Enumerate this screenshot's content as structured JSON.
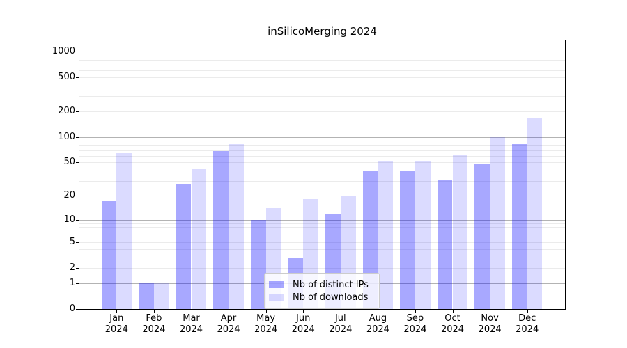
{
  "title": "inSilicoMerging 2024",
  "chart_data": {
    "type": "bar",
    "title": "inSilicoMerging 2024",
    "x_categories_line1": [
      "Jan",
      "Feb",
      "Mar",
      "Apr",
      "May",
      "Jun",
      "Jul",
      "Aug",
      "Sep",
      "Oct",
      "Nov",
      "Dec"
    ],
    "x_categories_line2": [
      "2024",
      "2024",
      "2024",
      "2024",
      "2024",
      "2024",
      "2024",
      "2024",
      "2024",
      "2024",
      "2024",
      "2024"
    ],
    "series": [
      {
        "name": "Nb of distinct IPs",
        "color": "rgba(0,0,255,0.34)",
        "values": [
          17,
          1,
          28,
          68,
          10,
          3,
          12,
          40,
          40,
          31,
          48,
          82
        ]
      },
      {
        "name": "Nb of downloads",
        "color": "rgba(0,0,255,0.14)",
        "values": [
          65,
          1,
          42,
          82,
          14,
          18,
          20,
          52,
          52,
          61,
          100,
          170
        ]
      }
    ],
    "y_scale": "log1p",
    "y_ticks": [
      0,
      1,
      2,
      5,
      10,
      20,
      50,
      100,
      200,
      500,
      1000
    ],
    "y_major_grid": [
      1,
      10,
      100,
      1000
    ],
    "y_minor_grid": [
      2,
      3,
      4,
      5,
      6,
      7,
      8,
      9,
      20,
      30,
      40,
      50,
      60,
      70,
      80,
      90,
      200,
      300,
      400,
      500,
      600,
      700,
      800,
      900
    ],
    "ylim": [
      0,
      1000
    ],
    "grid": true,
    "legend_position": "lower center-left inside plot"
  },
  "colors": {
    "ips_bar": "rgba(0,0,255,0.34)",
    "downloads_bar": "rgba(0,0,255,0.14)",
    "major_grid": "#b3b3b3",
    "minor_grid": "#ebebeb",
    "spine": "#000000",
    "text": "#000000"
  }
}
